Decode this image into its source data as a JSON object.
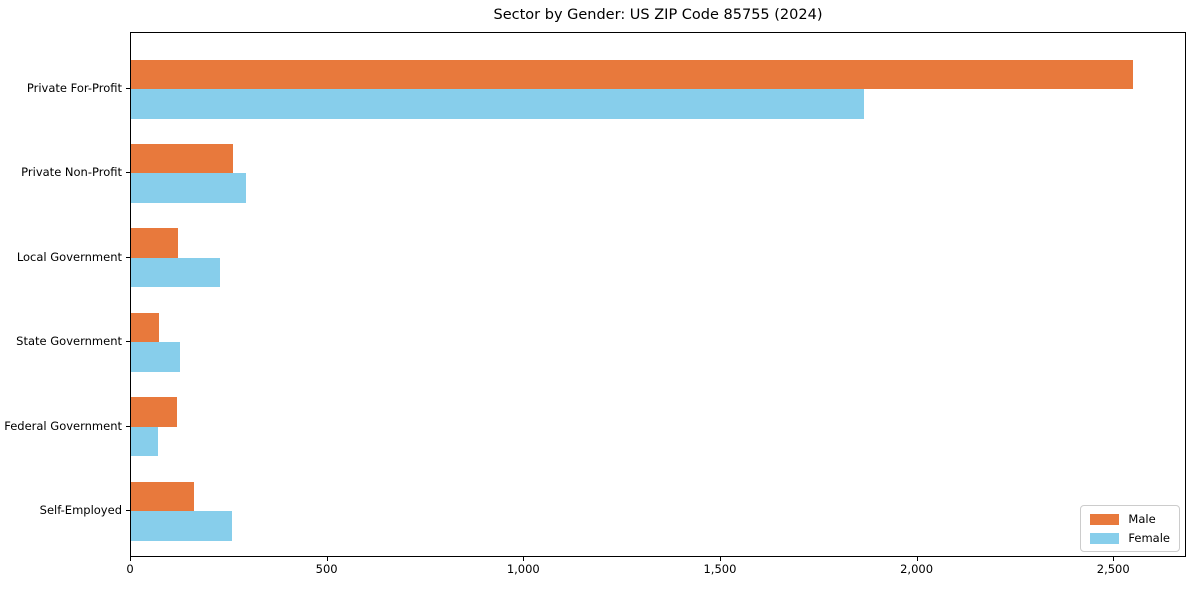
{
  "chart_data": {
    "type": "bar",
    "orientation": "horizontal",
    "title": "Sector by Gender: US ZIP Code 85755 (2024)",
    "categories": [
      "Private For-Profit",
      "Private Non-Profit",
      "Local Government",
      "State Government",
      "Federal Government",
      "Self-Employed"
    ],
    "series": [
      {
        "name": "Male",
        "color": "#e8793c",
        "values": [
          2553,
          259,
          120,
          71,
          117,
          160
        ]
      },
      {
        "name": "Female",
        "color": "#87ceeb",
        "values": [
          1867,
          292,
          226,
          125,
          69,
          257
        ]
      }
    ],
    "xlabel": "",
    "ylabel": "",
    "xlim": [
      0,
      2685
    ],
    "xticks": [
      0,
      500,
      1000,
      1500,
      2000,
      2500
    ],
    "xtick_labels": [
      "0",
      "500",
      "1,000",
      "1,500",
      "2,000",
      "2,500"
    ],
    "grid": false,
    "legend_position": "lower right",
    "background_color": "#ffffff",
    "axis_color": "#000000"
  }
}
